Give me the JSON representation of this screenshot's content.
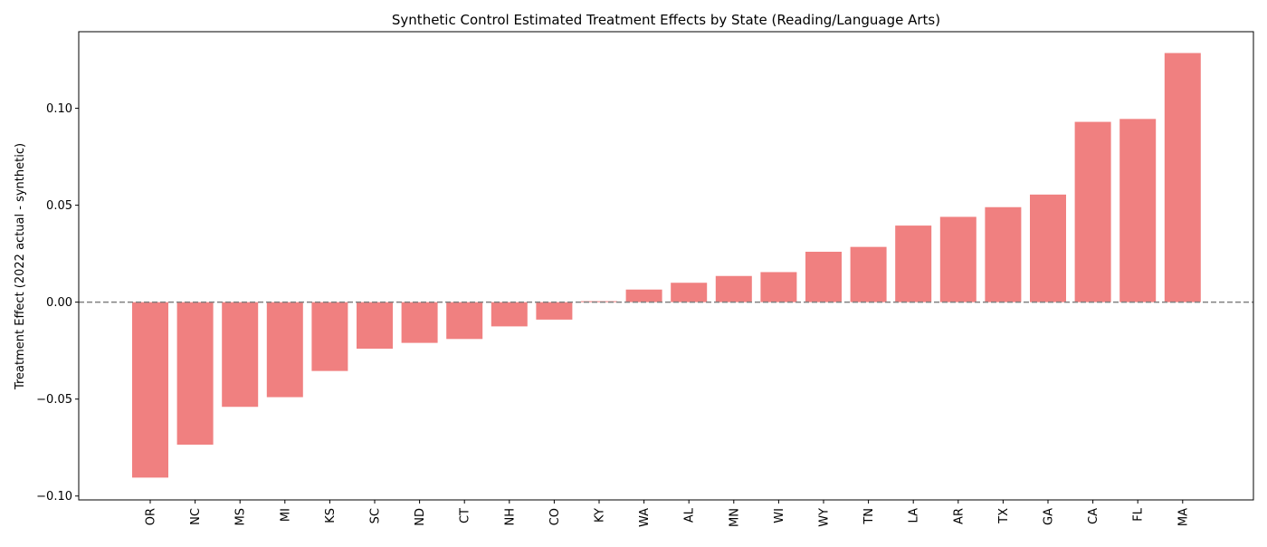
{
  "chart_data": {
    "type": "bar",
    "title": "Synthetic Control Estimated Treatment Effects by State (Reading/Language Arts)",
    "xlabel": "",
    "ylabel": "Treatment Effect (2022 actual - synthetic)",
    "categories": [
      "OR",
      "NC",
      "MS",
      "MI",
      "KS",
      "SC",
      "ND",
      "CT",
      "NH",
      "CO",
      "KY",
      "WA",
      "AL",
      "MN",
      "WI",
      "WY",
      "TN",
      "LA",
      "AR",
      "TX",
      "GA",
      "CA",
      "FL",
      "MA"
    ],
    "values": [
      -0.0905,
      -0.0735,
      -0.054,
      -0.049,
      -0.0355,
      -0.024,
      -0.021,
      -0.019,
      -0.0125,
      -0.009,
      0.0005,
      0.0065,
      0.01,
      0.0135,
      0.0155,
      0.026,
      0.0285,
      0.0395,
      0.044,
      0.049,
      0.0555,
      0.093,
      0.0945,
      0.1285
    ],
    "ylim": [
      -0.102,
      0.1395
    ],
    "yticks": [
      -0.1,
      -0.05,
      0.0,
      0.05,
      0.1
    ],
    "ytick_labels": [
      "−0.10",
      "−0.05",
      "0.00",
      "0.05",
      "0.10"
    ],
    "bar_color": "#f08080",
    "reference_line": {
      "y": 0,
      "style": "dashed",
      "color": "#808080"
    },
    "grid": false,
    "legend": false
  }
}
